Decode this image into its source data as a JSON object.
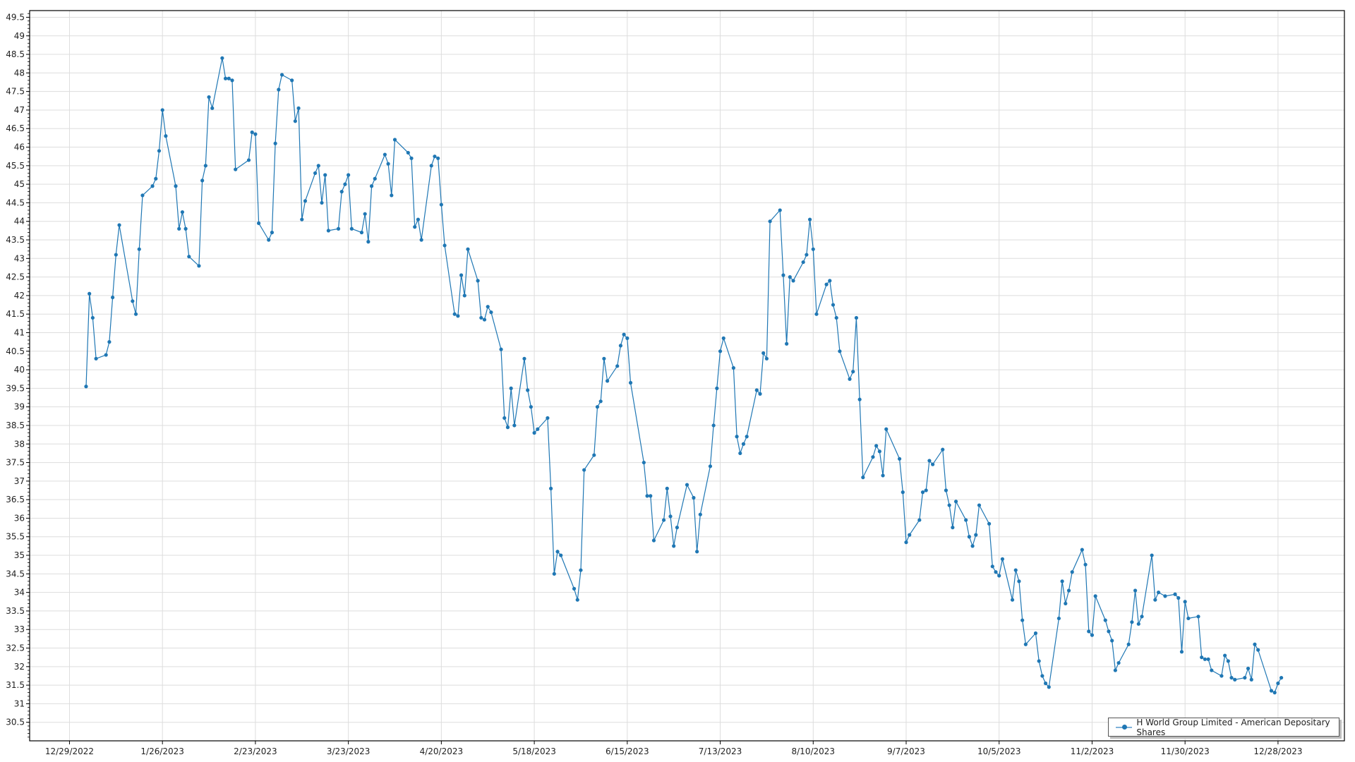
{
  "chart_data": {
    "type": "line",
    "title": "",
    "xlabel": "",
    "ylabel": "",
    "xlim": [
      "2022-12-17",
      "2024-01-17"
    ],
    "ylim": [
      30,
      49.68
    ],
    "grid": true,
    "legend_placement": "bottom-right",
    "colors": {
      "series": "#1f77b4",
      "grid": "#dddddd"
    },
    "x_ticks": [
      "12/29/2022",
      "1/26/2023",
      "2/23/2023",
      "3/23/2023",
      "4/20/2023",
      "5/18/2023",
      "6/15/2023",
      "7/13/2023",
      "8/10/2023",
      "9/7/2023",
      "10/5/2023",
      "11/2/2023",
      "11/30/2023",
      "12/28/2023"
    ],
    "x_tick_dates": [
      "2022-12-29",
      "2023-01-26",
      "2023-02-23",
      "2023-03-23",
      "2023-04-20",
      "2023-05-18",
      "2023-06-15",
      "2023-07-13",
      "2023-08-10",
      "2023-09-07",
      "2023-10-05",
      "2023-11-02",
      "2023-11-30",
      "2023-12-28"
    ],
    "y_ticks": [
      "30.5",
      "31",
      "31.5",
      "32",
      "32.5",
      "33",
      "33.5",
      "34",
      "34.5",
      "35",
      "35.5",
      "36",
      "36.5",
      "37",
      "37.5",
      "38",
      "38.5",
      "39",
      "39.5",
      "40",
      "40.5",
      "41",
      "41.5",
      "42",
      "42.5",
      "43",
      "43.5",
      "44",
      "44.5",
      "45",
      "45.5",
      "46",
      "46.5",
      "47",
      "47.5",
      "48",
      "48.5",
      "49",
      "49.5"
    ],
    "series": [
      {
        "name": "H World Group Limited - American Depositary Shares",
        "points": [
          [
            "2023-01-03",
            39.55
          ],
          [
            "2023-01-04",
            42.05
          ],
          [
            "2023-01-05",
            41.4
          ],
          [
            "2023-01-06",
            40.3
          ],
          [
            "2023-01-09",
            40.4
          ],
          [
            "2023-01-10",
            40.75
          ],
          [
            "2023-01-11",
            41.95
          ],
          [
            "2023-01-12",
            43.1
          ],
          [
            "2023-01-13",
            43.9
          ],
          [
            "2023-01-17",
            41.85
          ],
          [
            "2023-01-18",
            41.5
          ],
          [
            "2023-01-19",
            43.25
          ],
          [
            "2023-01-20",
            44.7
          ],
          [
            "2023-01-23",
            44.95
          ],
          [
            "2023-01-24",
            45.15
          ],
          [
            "2023-01-25",
            45.9
          ],
          [
            "2023-01-26",
            47.0
          ],
          [
            "2023-01-27",
            46.3
          ],
          [
            "2023-01-30",
            44.95
          ],
          [
            "2023-01-31",
            43.8
          ],
          [
            "2023-02-01",
            44.25
          ],
          [
            "2023-02-02",
            43.8
          ],
          [
            "2023-02-03",
            43.05
          ],
          [
            "2023-02-06",
            42.8
          ],
          [
            "2023-02-07",
            45.1
          ],
          [
            "2023-02-08",
            45.5
          ],
          [
            "2023-02-09",
            47.35
          ],
          [
            "2023-02-10",
            47.05
          ],
          [
            "2023-02-13",
            48.4
          ],
          [
            "2023-02-14",
            47.85
          ],
          [
            "2023-02-15",
            47.85
          ],
          [
            "2023-02-16",
            47.8
          ],
          [
            "2023-02-17",
            45.4
          ],
          [
            "2023-02-21",
            45.65
          ],
          [
            "2023-02-22",
            46.4
          ],
          [
            "2023-02-23",
            46.35
          ],
          [
            "2023-02-24",
            43.95
          ],
          [
            "2023-02-27",
            43.5
          ],
          [
            "2023-02-28",
            43.7
          ],
          [
            "2023-03-01",
            46.1
          ],
          [
            "2023-03-02",
            47.55
          ],
          [
            "2023-03-03",
            47.95
          ],
          [
            "2023-03-06",
            47.8
          ],
          [
            "2023-03-07",
            46.7
          ],
          [
            "2023-03-08",
            47.05
          ],
          [
            "2023-03-09",
            44.05
          ],
          [
            "2023-03-10",
            44.55
          ],
          [
            "2023-03-13",
            45.3
          ],
          [
            "2023-03-14",
            45.5
          ],
          [
            "2023-03-15",
            44.5
          ],
          [
            "2023-03-16",
            45.25
          ],
          [
            "2023-03-17",
            43.75
          ],
          [
            "2023-03-20",
            43.8
          ],
          [
            "2023-03-21",
            44.8
          ],
          [
            "2023-03-22",
            45.0
          ],
          [
            "2023-03-23",
            45.25
          ],
          [
            "2023-03-24",
            43.8
          ],
          [
            "2023-03-27",
            43.7
          ],
          [
            "2023-03-28",
            44.2
          ],
          [
            "2023-03-29",
            43.45
          ],
          [
            "2023-03-30",
            44.95
          ],
          [
            "2023-03-31",
            45.15
          ],
          [
            "2023-04-03",
            45.8
          ],
          [
            "2023-04-04",
            45.55
          ],
          [
            "2023-04-05",
            44.7
          ],
          [
            "2023-04-06",
            46.2
          ],
          [
            "2023-04-10",
            45.85
          ],
          [
            "2023-04-11",
            45.7
          ],
          [
            "2023-04-12",
            43.85
          ],
          [
            "2023-04-13",
            44.05
          ],
          [
            "2023-04-14",
            43.5
          ],
          [
            "2023-04-17",
            45.5
          ],
          [
            "2023-04-18",
            45.75
          ],
          [
            "2023-04-19",
            45.7
          ],
          [
            "2023-04-20",
            44.45
          ],
          [
            "2023-04-21",
            43.35
          ],
          [
            "2023-04-24",
            41.5
          ],
          [
            "2023-04-25",
            41.45
          ],
          [
            "2023-04-26",
            42.55
          ],
          [
            "2023-04-27",
            42.0
          ],
          [
            "2023-04-28",
            43.25
          ],
          [
            "2023-05-01",
            42.4
          ],
          [
            "2023-05-02",
            41.4
          ],
          [
            "2023-05-03",
            41.35
          ],
          [
            "2023-05-04",
            41.7
          ],
          [
            "2023-05-05",
            41.55
          ],
          [
            "2023-05-08",
            40.55
          ],
          [
            "2023-05-09",
            38.7
          ],
          [
            "2023-05-10",
            38.45
          ],
          [
            "2023-05-11",
            39.5
          ],
          [
            "2023-05-12",
            38.5
          ],
          [
            "2023-05-15",
            40.3
          ],
          [
            "2023-05-16",
            39.45
          ],
          [
            "2023-05-17",
            39.0
          ],
          [
            "2023-05-18",
            38.3
          ],
          [
            "2023-05-19",
            38.4
          ],
          [
            "2023-05-22",
            38.7
          ],
          [
            "2023-05-23",
            36.8
          ],
          [
            "2023-05-24",
            34.5
          ],
          [
            "2023-05-25",
            35.1
          ],
          [
            "2023-05-26",
            35.0
          ],
          [
            "2023-05-30",
            34.1
          ],
          [
            "2023-05-31",
            33.8
          ],
          [
            "2023-06-01",
            34.6
          ],
          [
            "2023-06-02",
            37.3
          ],
          [
            "2023-06-05",
            37.7
          ],
          [
            "2023-06-06",
            39.0
          ],
          [
            "2023-06-07",
            39.15
          ],
          [
            "2023-06-08",
            40.3
          ],
          [
            "2023-06-09",
            39.7
          ],
          [
            "2023-06-12",
            40.1
          ],
          [
            "2023-06-13",
            40.65
          ],
          [
            "2023-06-14",
            40.95
          ],
          [
            "2023-06-15",
            40.85
          ],
          [
            "2023-06-16",
            39.65
          ],
          [
            "2023-06-20",
            37.5
          ],
          [
            "2023-06-21",
            36.6
          ],
          [
            "2023-06-22",
            36.6
          ],
          [
            "2023-06-23",
            35.4
          ],
          [
            "2023-06-26",
            35.95
          ],
          [
            "2023-06-27",
            36.8
          ],
          [
            "2023-06-28",
            36.05
          ],
          [
            "2023-06-29",
            35.25
          ],
          [
            "2023-06-30",
            35.75
          ],
          [
            "2023-07-03",
            36.9
          ],
          [
            "2023-07-05",
            36.55
          ],
          [
            "2023-07-06",
            35.1
          ],
          [
            "2023-07-07",
            36.1
          ],
          [
            "2023-07-10",
            37.4
          ],
          [
            "2023-07-11",
            38.5
          ],
          [
            "2023-07-12",
            39.5
          ],
          [
            "2023-07-13",
            40.5
          ],
          [
            "2023-07-14",
            40.85
          ],
          [
            "2023-07-17",
            40.05
          ],
          [
            "2023-07-18",
            38.2
          ],
          [
            "2023-07-19",
            37.75
          ],
          [
            "2023-07-20",
            38.0
          ],
          [
            "2023-07-21",
            38.2
          ],
          [
            "2023-07-24",
            39.45
          ],
          [
            "2023-07-25",
            39.35
          ],
          [
            "2023-07-26",
            40.45
          ],
          [
            "2023-07-27",
            40.3
          ],
          [
            "2023-07-28",
            44.0
          ],
          [
            "2023-07-31",
            44.3
          ],
          [
            "2023-08-01",
            42.55
          ],
          [
            "2023-08-02",
            40.7
          ],
          [
            "2023-08-03",
            42.5
          ],
          [
            "2023-08-04",
            42.4
          ],
          [
            "2023-08-07",
            42.9
          ],
          [
            "2023-08-08",
            43.1
          ],
          [
            "2023-08-09",
            44.05
          ],
          [
            "2023-08-10",
            43.25
          ],
          [
            "2023-08-11",
            41.5
          ],
          [
            "2023-08-14",
            42.3
          ],
          [
            "2023-08-15",
            42.4
          ],
          [
            "2023-08-16",
            41.75
          ],
          [
            "2023-08-17",
            41.4
          ],
          [
            "2023-08-18",
            40.5
          ],
          [
            "2023-08-21",
            39.75
          ],
          [
            "2023-08-22",
            39.95
          ],
          [
            "2023-08-23",
            41.4
          ],
          [
            "2023-08-24",
            39.2
          ],
          [
            "2023-08-25",
            37.1
          ],
          [
            "2023-08-28",
            37.65
          ],
          [
            "2023-08-29",
            37.95
          ],
          [
            "2023-08-30",
            37.8
          ],
          [
            "2023-08-31",
            37.15
          ],
          [
            "2023-09-01",
            38.4
          ],
          [
            "2023-09-05",
            37.6
          ],
          [
            "2023-09-06",
            36.7
          ],
          [
            "2023-09-07",
            35.35
          ],
          [
            "2023-09-08",
            35.55
          ],
          [
            "2023-09-11",
            35.95
          ],
          [
            "2023-09-12",
            36.7
          ],
          [
            "2023-09-13",
            36.75
          ],
          [
            "2023-09-14",
            37.55
          ],
          [
            "2023-09-15",
            37.45
          ],
          [
            "2023-09-18",
            37.85
          ],
          [
            "2023-09-19",
            36.75
          ],
          [
            "2023-09-20",
            36.35
          ],
          [
            "2023-09-21",
            35.75
          ],
          [
            "2023-09-22",
            36.45
          ],
          [
            "2023-09-25",
            35.95
          ],
          [
            "2023-09-26",
            35.5
          ],
          [
            "2023-09-27",
            35.25
          ],
          [
            "2023-09-28",
            35.55
          ],
          [
            "2023-09-29",
            36.35
          ],
          [
            "2023-10-02",
            35.85
          ],
          [
            "2023-10-03",
            34.7
          ],
          [
            "2023-10-04",
            34.55
          ],
          [
            "2023-10-05",
            34.45
          ],
          [
            "2023-10-06",
            34.9
          ],
          [
            "2023-10-09",
            33.8
          ],
          [
            "2023-10-10",
            34.6
          ],
          [
            "2023-10-11",
            34.3
          ],
          [
            "2023-10-12",
            33.25
          ],
          [
            "2023-10-13",
            32.6
          ],
          [
            "2023-10-16",
            32.9
          ],
          [
            "2023-10-17",
            32.15
          ],
          [
            "2023-10-18",
            31.75
          ],
          [
            "2023-10-19",
            31.55
          ],
          [
            "2023-10-20",
            31.45
          ],
          [
            "2023-10-23",
            33.3
          ],
          [
            "2023-10-24",
            34.3
          ],
          [
            "2023-10-25",
            33.7
          ],
          [
            "2023-10-26",
            34.05
          ],
          [
            "2023-10-27",
            34.55
          ],
          [
            "2023-10-30",
            35.15
          ],
          [
            "2023-10-31",
            34.75
          ],
          [
            "2023-11-01",
            32.95
          ],
          [
            "2023-11-02",
            32.85
          ],
          [
            "2023-11-03",
            33.9
          ],
          [
            "2023-11-06",
            33.25
          ],
          [
            "2023-11-07",
            32.95
          ],
          [
            "2023-11-08",
            32.7
          ],
          [
            "2023-11-09",
            31.9
          ],
          [
            "2023-11-10",
            32.1
          ],
          [
            "2023-11-13",
            32.6
          ],
          [
            "2023-11-14",
            33.2
          ],
          [
            "2023-11-15",
            34.05
          ],
          [
            "2023-11-16",
            33.15
          ],
          [
            "2023-11-17",
            33.35
          ],
          [
            "2023-11-20",
            35.0
          ],
          [
            "2023-11-21",
            33.8
          ],
          [
            "2023-11-22",
            34.0
          ],
          [
            "2023-11-24",
            33.9
          ],
          [
            "2023-11-27",
            33.95
          ],
          [
            "2023-11-28",
            33.85
          ],
          [
            "2023-11-29",
            32.4
          ],
          [
            "2023-11-30",
            33.75
          ],
          [
            "2023-12-01",
            33.3
          ],
          [
            "2023-12-04",
            33.35
          ],
          [
            "2023-12-05",
            32.25
          ],
          [
            "2023-12-06",
            32.2
          ],
          [
            "2023-12-07",
            32.2
          ],
          [
            "2023-12-08",
            31.9
          ],
          [
            "2023-12-11",
            31.75
          ],
          [
            "2023-12-12",
            32.3
          ],
          [
            "2023-12-13",
            32.15
          ],
          [
            "2023-12-14",
            31.7
          ],
          [
            "2023-12-15",
            31.65
          ],
          [
            "2023-12-18",
            31.7
          ],
          [
            "2023-12-19",
            31.95
          ],
          [
            "2023-12-20",
            31.65
          ],
          [
            "2023-12-21",
            32.6
          ],
          [
            "2023-12-22",
            32.45
          ],
          [
            "2023-12-26",
            31.35
          ],
          [
            "2023-12-27",
            31.3
          ],
          [
            "2023-12-28",
            31.55
          ],
          [
            "2023-12-29",
            31.7
          ]
        ]
      }
    ]
  }
}
